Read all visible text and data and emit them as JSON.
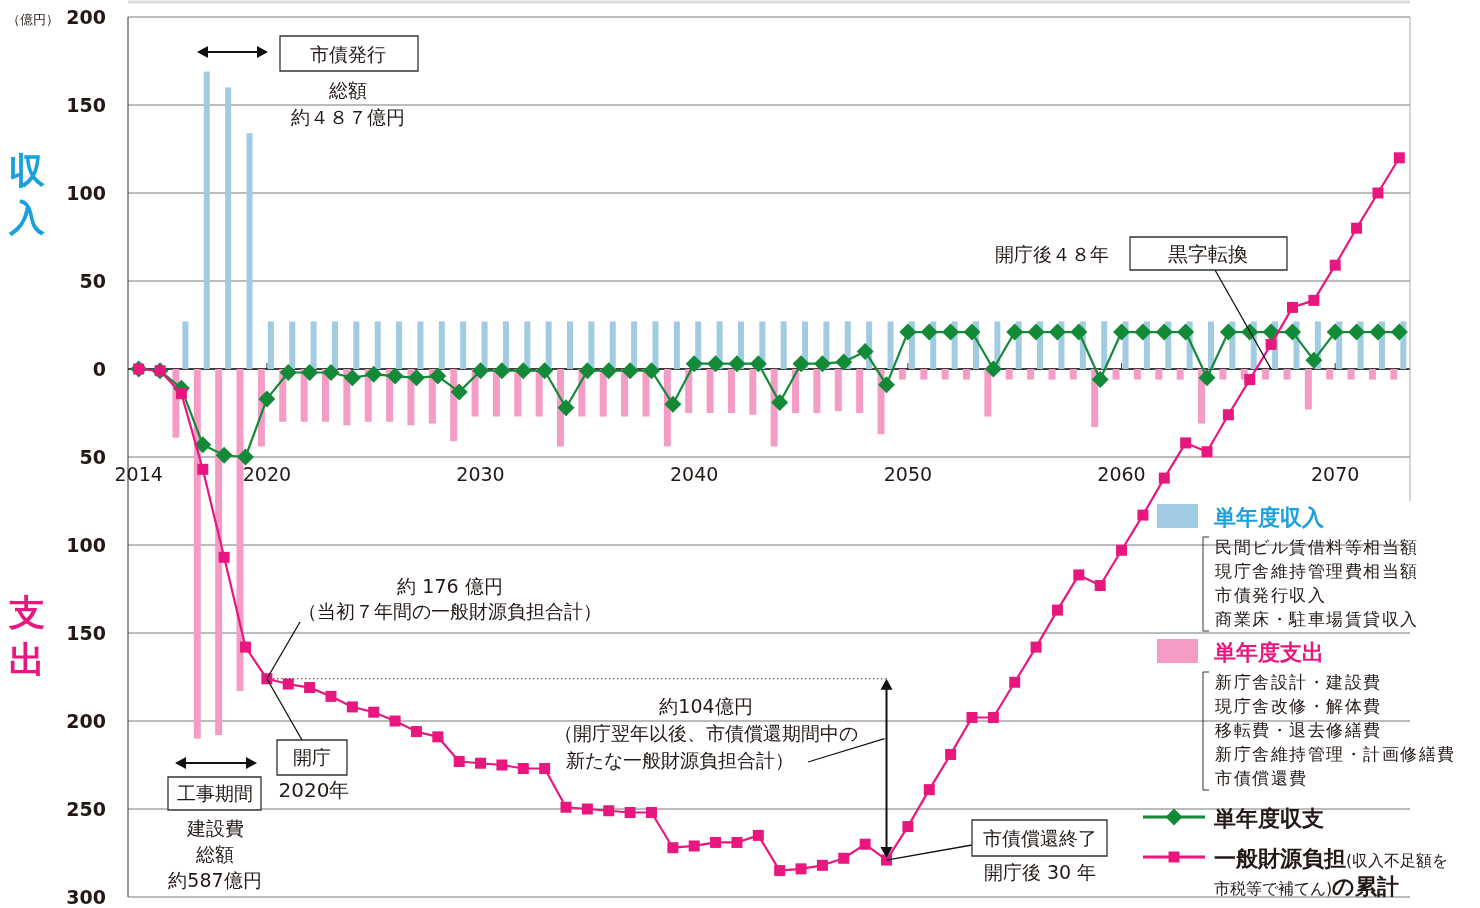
{
  "chart_data": {
    "type": "bar",
    "ylabel": "（億円）",
    "x": [
      2014,
      2015,
      2016,
      2017,
      2018,
      2019,
      2020,
      2021,
      2022,
      2023,
      2024,
      2025,
      2026,
      2027,
      2028,
      2029,
      2030,
      2031,
      2032,
      2033,
      2034,
      2035,
      2036,
      2037,
      2038,
      2039,
      2040,
      2041,
      2042,
      2043,
      2044,
      2045,
      2046,
      2047,
      2048,
      2049,
      2050,
      2051,
      2052,
      2053,
      2054,
      2055,
      2056,
      2057,
      2058,
      2059,
      2060,
      2061,
      2062,
      2063,
      2064,
      2065,
      2066,
      2067,
      2068,
      2069,
      2070,
      2071,
      2072,
      2073
    ],
    "series": [
      {
        "name": "単年度収入",
        "color": "#9fcbe3",
        "values": [
          null,
          null,
          27,
          169,
          160,
          134,
          27,
          27,
          27,
          27,
          27,
          27,
          27,
          27,
          27,
          27,
          27,
          27,
          27,
          27,
          27,
          27,
          27,
          27,
          27,
          27,
          27,
          27,
          27,
          27,
          27,
          27,
          27,
          27,
          27,
          27,
          27,
          27,
          27,
          27,
          27,
          27,
          27,
          27,
          27,
          27,
          27,
          27,
          27,
          27,
          27,
          27,
          27,
          27,
          27,
          27,
          27,
          27,
          27,
          27
        ]
      },
      {
        "name": "単年度支出",
        "color": "#f49cc5",
        "values": [
          null,
          null,
          -39,
          -210,
          -208,
          -183,
          -44,
          -30,
          -30,
          -30,
          -32,
          -30,
          -30,
          -32,
          -31,
          -41,
          -27,
          -27,
          -27,
          -27,
          -44,
          -27,
          -27,
          -27,
          -27,
          -44,
          -25,
          -25,
          -25,
          -26,
          -44,
          -25,
          -25,
          -24,
          -25,
          -37,
          -6,
          -6,
          -6,
          -6,
          -27,
          -6,
          -6,
          -6,
          -6,
          -33,
          -6,
          -6,
          -6,
          -6,
          -31,
          -6,
          -6,
          -6,
          -6,
          -23,
          -6,
          -6,
          -6,
          -6
        ]
      },
      {
        "name": "単年度収支",
        "type": "line",
        "marker": "diamond",
        "color": "#138a38",
        "values": [
          0,
          -1,
          -11,
          -43,
          -49,
          -50,
          -17,
          -2,
          -2,
          -2,
          -5,
          -3,
          -4,
          -5,
          -4,
          -13,
          -1,
          -1,
          -1,
          -1,
          -22,
          -1,
          -1,
          -1,
          -1,
          -20,
          3,
          3,
          3,
          3,
          -19,
          3,
          3,
          4,
          10,
          -9,
          21,
          21,
          21,
          21,
          0,
          21,
          21,
          21,
          21,
          -6,
          21,
          21,
          21,
          21,
          -5,
          21,
          21,
          21,
          21,
          5,
          21,
          21,
          21,
          21
        ]
      },
      {
        "name": "一般財源負担(収入不足額を市税等で補てん)の累計",
        "type": "line",
        "marker": "square",
        "color": "#e8177f",
        "values": [
          0,
          -1,
          -14,
          -57,
          -107,
          -158,
          -176,
          -179,
          -181,
          -186,
          -192,
          -195,
          -200,
          -206,
          -209,
          -223,
          -224,
          -225,
          -227,
          -227,
          -249,
          -250,
          -251,
          -252,
          -252,
          -272,
          -271,
          -269,
          -269,
          -265,
          -285,
          -284,
          -282,
          -278,
          -270,
          -279,
          -260,
          -239,
          -219,
          -198,
          -198,
          -178,
          -158,
          -137,
          -117,
          -123,
          -103,
          -83,
          -62,
          -42,
          -47,
          -26,
          -6,
          14,
          35,
          39,
          59,
          80,
          100,
          120
        ]
      }
    ],
    "xlim": [
      2013.5,
      2073.5
    ],
    "xticks": [
      2014,
      2020,
      2030,
      2040,
      2050,
      2060,
      2070
    ],
    "ylim": [
      -300,
      200
    ],
    "yticks": [
      200,
      150,
      100,
      50,
      0,
      {
        "value": -50,
        "label": "50"
      },
      {
        "value": -100,
        "label": "100"
      },
      {
        "value": -150,
        "label": "150"
      },
      {
        "value": -200,
        "label": "200"
      },
      {
        "value": -250,
        "label": "250"
      },
      {
        "value": -300,
        "label": "300"
      }
    ],
    "grid": "y",
    "legend": "bottom right",
    "annotations": [
      "収入",
      "支出",
      "市債発行",
      "総額",
      "約４８７億円",
      {
        "text": "黒字転換",
        "x": 2067,
        "y": 0
      },
      "開庁後４８年",
      "約 176 億円",
      {
        "text": "（当初７年間の一般財源負担合計）",
        "x": 2020,
        "y": -176
      },
      "約104億円",
      "（開庁翌年以後、市債償還期間中の",
      "新たな一般財源負担合計）",
      {
        "text": "開庁",
        "x": 2020,
        "y": -176
      },
      "2020年",
      "工事期間",
      "建設費",
      "総額",
      "約587億円",
      {
        "text": "市債償還終了",
        "x": 2049,
        "y": -279
      },
      "開庁後 30 年",
      "民間ビル賃借料等相当額",
      "現庁舎維持管理費相当額",
      "市債発行収入",
      "商業床・駐車場賃貸収入",
      "新庁舎設計・建設費",
      "現庁舎改修・解体費",
      "移転費・退去修繕費",
      "新庁舎維持管理・計画修繕費",
      "市債償還費"
    ]
  }
}
